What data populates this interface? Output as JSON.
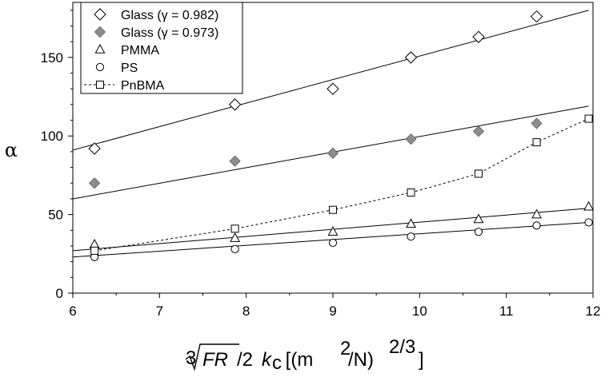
{
  "chart_data": {
    "type": "scatter",
    "xlabel": "∛FR/2kc [(m²/N)^(2/3)]",
    "xlabel_parts": {
      "root_index": "3",
      "radicand": "FR",
      "mid": "/2",
      "k": "k",
      "k_sub": "c",
      "open": " [(m",
      "exp1": "2",
      "slash": "/N)",
      "exp2": "2/3",
      "close": "]"
    },
    "ylabel": "α",
    "xlim": [
      6,
      12
    ],
    "ylim": [
      0,
      185
    ],
    "x_ticks": [
      "6",
      "7",
      "8",
      "9",
      "10",
      "11",
      "12"
    ],
    "y_ticks": [
      "0",
      "50",
      "100",
      "150"
    ],
    "grid": false,
    "legend_position": "top-left",
    "series": [
      {
        "name": "Glass (γ = 0.982)",
        "marker": "diamond-open",
        "x": [
          6.25,
          7.87,
          9.0,
          9.9,
          10.68,
          11.35
        ],
        "y": [
          92,
          120,
          130,
          150,
          163,
          176
        ],
        "fit": {
          "x": [
            6.0,
            11.95
          ],
          "y": [
            91,
            180
          ]
        }
      },
      {
        "name": "Glass (γ = 0.973)",
        "marker": "diamond-filled",
        "x": [
          6.25,
          7.87,
          9.0,
          9.9,
          10.68,
          11.35
        ],
        "y": [
          70,
          84,
          89,
          98,
          103,
          108
        ],
        "fit": {
          "x": [
            6.0,
            11.95
          ],
          "y": [
            60,
            119
          ]
        }
      },
      {
        "name": "PMMA",
        "marker": "triangle-open",
        "x": [
          6.25,
          7.87,
          9.0,
          9.9,
          10.68,
          11.35,
          11.95
        ],
        "y": [
          31,
          35,
          39,
          44,
          47,
          50,
          55
        ],
        "fit": {
          "x": [
            6.0,
            11.95
          ],
          "y": [
            27,
            54
          ]
        }
      },
      {
        "name": "PS",
        "marker": "circle-open",
        "x": [
          6.25,
          7.87,
          9.0,
          9.9,
          10.68,
          11.35,
          11.95
        ],
        "y": [
          23,
          28,
          32,
          36,
          39,
          43,
          45
        ],
        "fit": {
          "x": [
            6.0,
            11.95
          ],
          "y": [
            23,
            45
          ]
        }
      },
      {
        "name": "PnBMA",
        "marker": "square-open",
        "connect": "dashed",
        "x": [
          6.25,
          7.87,
          9.0,
          9.9,
          10.68,
          11.35,
          11.95
        ],
        "y": [
          27,
          41,
          53,
          64,
          76,
          96,
          111
        ]
      }
    ]
  }
}
